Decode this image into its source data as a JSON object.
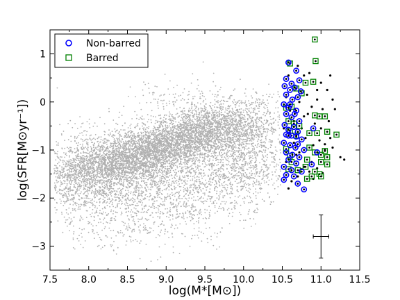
{
  "chart_data": {
    "type": "scatter",
    "xlabel": "log(M*[M⊙])",
    "ylabel": "log(SFR[M⊙yr⁻¹])",
    "xlim": [
      7.5,
      11.5
    ],
    "ylim": [
      -3.5,
      1.5
    ],
    "x_ticks": [
      "7.5",
      "8.0",
      "8.5",
      "9.0",
      "9.5",
      "10.0",
      "10.5",
      "11.0",
      "11.5"
    ],
    "y_ticks": [
      "1",
      "0",
      "−1",
      "−2",
      "−3"
    ],
    "grid": false,
    "legend": {
      "placement": "top-left",
      "entries": [
        "Non-barred",
        "Barred"
      ]
    },
    "colors": {
      "background": "#b0b0b0",
      "selected": "#000000",
      "nonbarred": "#0000ff",
      "barred": "#008000"
    },
    "series": [
      {
        "name": "Non-barred",
        "marker": "circle",
        "points": [
          [
            10.58,
            0.82
          ],
          [
            10.68,
            0.65
          ],
          [
            10.55,
            0.48
          ],
          [
            10.72,
            0.45
          ],
          [
            10.62,
            0.38
          ],
          [
            10.53,
            0.33
          ],
          [
            10.66,
            0.3
          ],
          [
            10.6,
            0.25
          ],
          [
            10.74,
            0.22
          ],
          [
            10.55,
            0.15
          ],
          [
            10.7,
            0.1
          ],
          [
            10.63,
            0.05
          ],
          [
            10.52,
            -0.05
          ],
          [
            10.58,
            -0.12
          ],
          [
            10.68,
            -0.18
          ],
          [
            10.55,
            -0.25
          ],
          [
            10.62,
            -0.32
          ],
          [
            10.72,
            -0.4
          ],
          [
            10.53,
            -0.48
          ],
          [
            10.65,
            -0.52
          ],
          [
            10.58,
            -0.58
          ],
          [
            10.7,
            -0.62
          ],
          [
            10.55,
            -0.68
          ],
          [
            10.62,
            -0.7
          ],
          [
            10.68,
            -0.72
          ],
          [
            10.75,
            -0.78
          ],
          [
            10.52,
            -0.85
          ],
          [
            10.6,
            -0.9
          ],
          [
            10.67,
            -0.95
          ],
          [
            10.78,
            -1.0
          ],
          [
            10.55,
            -1.05
          ],
          [
            10.63,
            -1.1
          ],
          [
            10.72,
            -1.15
          ],
          [
            10.58,
            -1.2
          ],
          [
            10.68,
            -1.28
          ],
          [
            10.52,
            -1.35
          ],
          [
            10.62,
            -1.42
          ],
          [
            10.75,
            -1.45
          ],
          [
            10.55,
            -1.52
          ],
          [
            10.65,
            -1.55
          ],
          [
            10.52,
            -1.62
          ],
          [
            10.7,
            -1.7
          ],
          [
            10.78,
            -1.82
          ],
          [
            10.9,
            -0.55
          ],
          [
            10.95,
            -1.05
          ],
          [
            10.88,
            -1.3
          ],
          [
            10.6,
            -0.05
          ],
          [
            10.66,
            -0.25
          ],
          [
            10.58,
            -0.7
          ],
          [
            10.7,
            -0.88
          ]
        ]
      },
      {
        "name": "Barred",
        "marker": "square",
        "points": [
          [
            10.92,
            1.3
          ],
          [
            10.93,
            0.85
          ],
          [
            10.6,
            0.8
          ],
          [
            10.9,
            0.42
          ],
          [
            10.8,
            0.4
          ],
          [
            10.68,
            0.28
          ],
          [
            10.75,
            0.18
          ],
          [
            10.62,
            -0.1
          ],
          [
            10.55,
            -0.12
          ],
          [
            10.92,
            -0.28
          ],
          [
            10.98,
            -0.3
          ],
          [
            11.05,
            -0.3
          ],
          [
            10.58,
            -0.4
          ],
          [
            10.65,
            -0.45
          ],
          [
            10.72,
            -0.5
          ],
          [
            10.6,
            -0.6
          ],
          [
            10.85,
            -0.65
          ],
          [
            10.95,
            -0.65
          ],
          [
            11.08,
            -0.62
          ],
          [
            11.2,
            -0.68
          ],
          [
            10.68,
            -0.7
          ],
          [
            10.85,
            -0.95
          ],
          [
            10.55,
            -0.98
          ],
          [
            11.05,
            -1.02
          ],
          [
            10.92,
            -1.05
          ],
          [
            11.0,
            -1.1
          ],
          [
            10.6,
            -1.12
          ],
          [
            11.08,
            -1.15
          ],
          [
            10.82,
            -1.2
          ],
          [
            11.0,
            -1.25
          ],
          [
            10.62,
            -1.25
          ],
          [
            11.08,
            -1.3
          ],
          [
            10.8,
            -1.35
          ],
          [
            10.58,
            -1.4
          ],
          [
            10.7,
            -1.42
          ],
          [
            10.92,
            -1.45
          ],
          [
            10.98,
            -1.5
          ],
          [
            11.0,
            -1.55
          ],
          [
            10.88,
            -1.55
          ],
          [
            10.82,
            -1.6
          ]
        ]
      }
    ],
    "selected_points": [
      [
        10.55,
        0.1
      ],
      [
        10.6,
        -0.18
      ],
      [
        10.65,
        -0.4
      ],
      [
        10.72,
        0.0
      ],
      [
        10.78,
        -0.3
      ],
      [
        10.82,
        0.15
      ],
      [
        10.88,
        -0.1
      ],
      [
        10.95,
        0.05
      ],
      [
        11.02,
        -0.15
      ],
      [
        11.1,
        -0.4
      ],
      [
        11.15,
        0.05
      ],
      [
        11.12,
        0.55
      ],
      [
        10.85,
        0.6
      ],
      [
        10.78,
        0.55
      ],
      [
        10.7,
        0.75
      ],
      [
        10.58,
        0.55
      ],
      [
        10.65,
        -0.85
      ],
      [
        10.72,
        -1.05
      ],
      [
        10.8,
        -0.75
      ],
      [
        10.9,
        -0.9
      ],
      [
        10.98,
        -0.8
      ],
      [
        11.05,
        -0.88
      ],
      [
        11.12,
        -0.75
      ],
      [
        10.55,
        -1.25
      ],
      [
        10.62,
        -1.65
      ],
      [
        10.7,
        -1.55
      ],
      [
        10.78,
        -1.35
      ],
      [
        10.85,
        -1.45
      ],
      [
        10.9,
        -1.6
      ],
      [
        10.95,
        -1.38
      ],
      [
        11.02,
        -1.48
      ],
      [
        10.58,
        -1.8
      ],
      [
        10.52,
        -0.55
      ],
      [
        10.6,
        -0.65
      ],
      [
        10.66,
        -0.15
      ],
      [
        10.75,
        -0.55
      ],
      [
        10.83,
        -0.25
      ],
      [
        10.92,
        -0.45
      ],
      [
        11.0,
        -0.55
      ],
      [
        11.08,
        0.25
      ],
      [
        11.18,
        -0.15
      ],
      [
        11.25,
        -1.15
      ],
      [
        11.3,
        -1.2
      ],
      [
        11.0,
        0.4
      ],
      [
        10.95,
        0.25
      ],
      [
        11.05,
        -1.0
      ],
      [
        11.15,
        -0.95
      ],
      [
        10.68,
        -1.1
      ],
      [
        10.75,
        -1.4
      ],
      [
        10.88,
        -1.25
      ]
    ],
    "background_clusters": [
      {
        "x": 8.6,
        "y": -1.15,
        "sx": 0.55,
        "sy": 0.32,
        "rho": 0.55,
        "n": 3400
      },
      {
        "x": 9.35,
        "y": -0.65,
        "sx": 0.4,
        "sy": 0.3,
        "rho": 0.45,
        "n": 1900
      },
      {
        "x": 9.9,
        "y": -0.55,
        "sx": 0.3,
        "sy": 0.35,
        "rho": 0.2,
        "n": 700
      },
      {
        "x": 8.2,
        "y": -1.75,
        "sx": 0.45,
        "sy": 0.4,
        "rho": 0.3,
        "n": 900
      },
      {
        "x": 9.5,
        "y": -1.6,
        "sx": 0.55,
        "sy": 0.4,
        "rho": 0.3,
        "n": 900
      },
      {
        "x": 8.0,
        "y": -1.3,
        "sx": 0.35,
        "sy": 0.45,
        "rho": 0.2,
        "n": 500
      },
      {
        "x": 9.0,
        "y": -2.25,
        "sx": 0.6,
        "sy": 0.35,
        "rho": 0.2,
        "n": 450
      },
      {
        "x": 9.2,
        "y": 0.0,
        "sx": 0.35,
        "sy": 0.25,
        "rho": 0.1,
        "n": 150
      },
      {
        "x": 10.1,
        "y": -1.2,
        "sx": 0.25,
        "sy": 0.45,
        "rho": 0.0,
        "n": 500
      },
      {
        "x": 8.5,
        "y": -2.7,
        "sx": 0.45,
        "sy": 0.25,
        "rho": 0.0,
        "n": 80
      }
    ],
    "error_bar": {
      "x": 11.0,
      "y": -2.8,
      "xerr": 0.1,
      "yerr": 0.45
    }
  }
}
